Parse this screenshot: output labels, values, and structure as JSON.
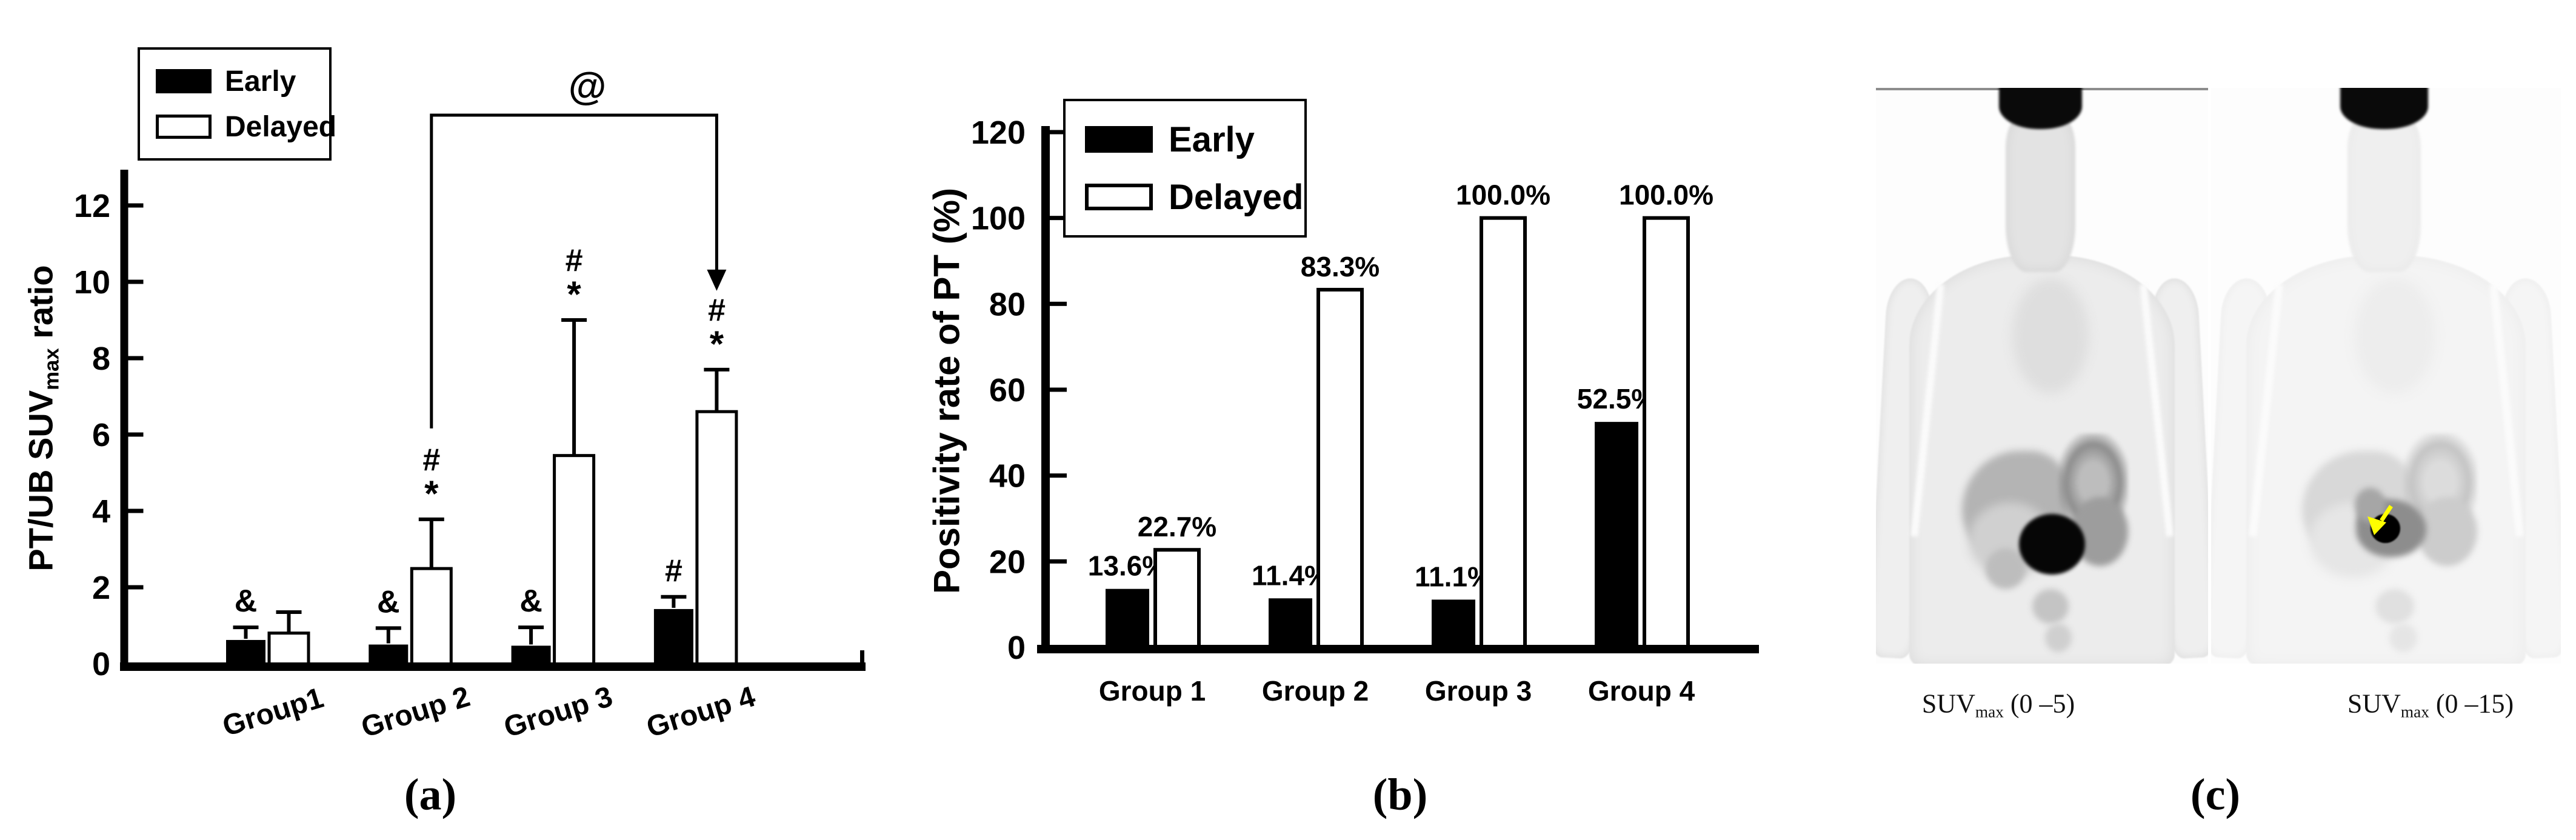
{
  "figure": {
    "background": "#ffffff",
    "panel_labels": {
      "a": "(a)",
      "b": "(b)",
      "c": "(c)"
    }
  },
  "chart_data": [
    {
      "type": "bar",
      "panel": "a",
      "title": "",
      "ylabel": {
        "prefix": "PT/UB SUV",
        "sub": "max",
        "suffix": " ratio"
      },
      "xlabel": "",
      "categories": [
        "Group1",
        "Group 2",
        "Group 3",
        "Group 4"
      ],
      "ylim": [
        0,
        13
      ],
      "yticks": [
        0,
        2,
        4,
        6,
        8,
        10,
        12
      ],
      "grid": false,
      "legend": {
        "position": "top-left",
        "items": [
          "Early",
          "Delayed"
        ]
      },
      "series": [
        {
          "name": "Early",
          "fill": "#000000",
          "values": [
            0.62,
            0.5,
            0.47,
            1.43
          ],
          "errors_up": [
            0.33,
            0.43,
            0.48,
            0.32
          ],
          "sig_marks": [
            "&",
            "&",
            "&",
            "#"
          ]
        },
        {
          "name": "Delayed",
          "fill": "#ffffff",
          "values": [
            0.8,
            2.49,
            5.45,
            6.6
          ],
          "errors_up": [
            0.55,
            1.29,
            3.55,
            1.1
          ],
          "sig_marks": [
            "",
            "#*",
            "#*",
            "#*"
          ]
        }
      ],
      "bracket": {
        "label": "@",
        "series": "Delayed",
        "from_category": "Group 2",
        "to_category": "Group 4",
        "arrow_end": "to"
      }
    },
    {
      "type": "bar",
      "panel": "b",
      "title": "",
      "ylabel": "Positivity rate of PT (%)",
      "xlabel": "",
      "categories": [
        "Group 1",
        "Group 2",
        "Group 3",
        "Group 4"
      ],
      "ylim": [
        0,
        130
      ],
      "yticks": [
        0,
        20,
        40,
        60,
        80,
        100,
        120
      ],
      "grid": false,
      "legend": {
        "position": "top-left",
        "items": [
          "Early",
          "Delayed"
        ]
      },
      "series": [
        {
          "name": "Early",
          "fill": "#000000",
          "values": [
            13.6,
            11.4,
            11.1,
            52.5
          ],
          "value_labels": [
            "13.6%",
            "11.4%",
            "11.1%",
            "52.5%"
          ]
        },
        {
          "name": "Delayed",
          "fill": "#ffffff",
          "values": [
            22.7,
            83.3,
            100.0,
            100.0
          ],
          "value_labels": [
            "22.7%",
            "83.3%",
            "100.0%",
            "100.0%"
          ]
        }
      ]
    }
  ],
  "panel_c": {
    "description": "Two whole-body FDG PET maximum-intensity-projection images",
    "arrow_color": "#ffff00",
    "images": [
      {
        "side": "left",
        "label": {
          "prefix": "SUV",
          "sub": "max",
          "range": " (0 –5)"
        },
        "arrow": false
      },
      {
        "side": "right",
        "label": {
          "prefix": "SUV",
          "sub": "max",
          "range": " (0 –15)"
        },
        "arrow": true
      }
    ]
  }
}
